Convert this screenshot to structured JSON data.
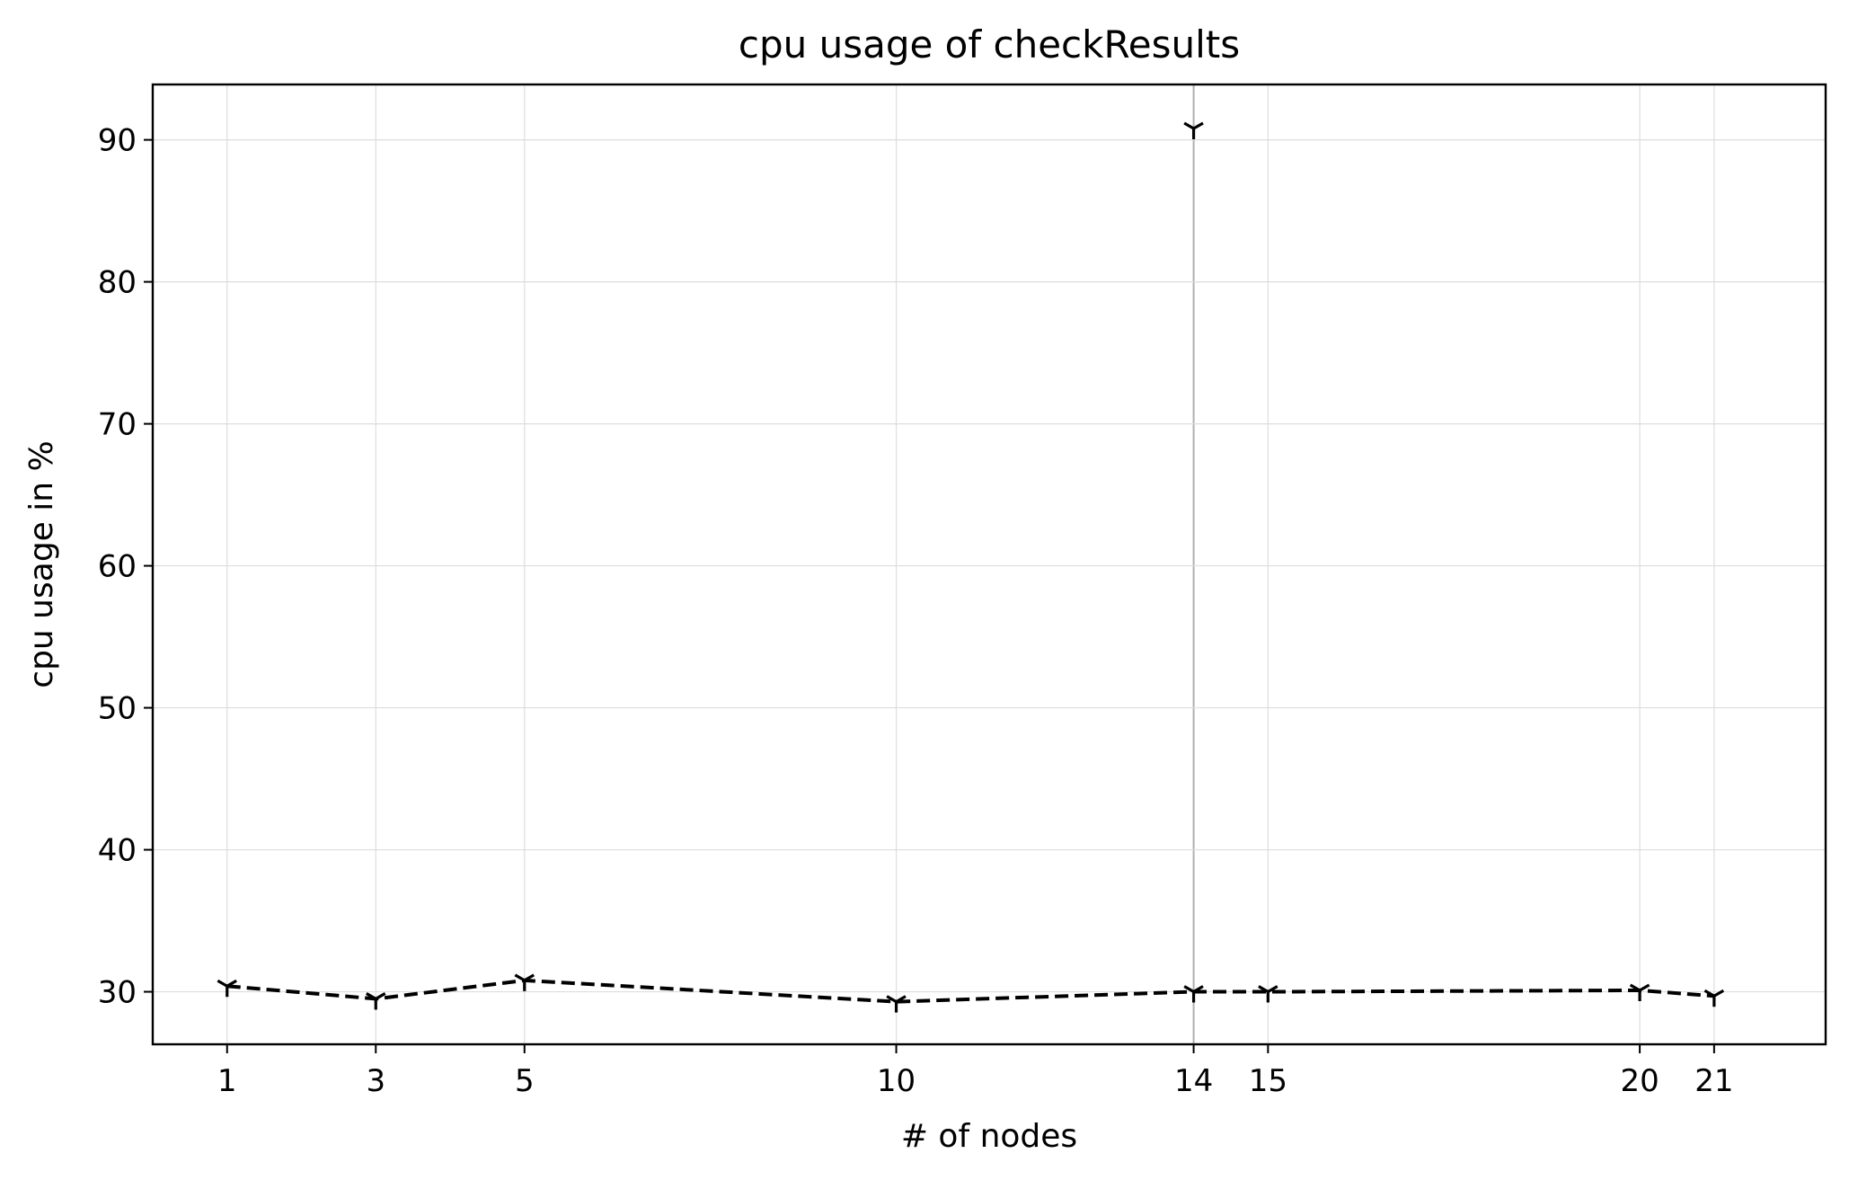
{
  "chart_data": {
    "type": "line",
    "title": "cpu usage of checkResults",
    "xlabel": "# of nodes",
    "ylabel": "cpu usage in %",
    "x": [
      1,
      3,
      5,
      10,
      14,
      15,
      20,
      21
    ],
    "xticks": [
      "1",
      "3",
      "5",
      "10",
      "14",
      "15",
      "20",
      "21"
    ],
    "yticks": [
      "30",
      "40",
      "50",
      "60",
      "70",
      "80",
      "90"
    ],
    "xlim": [
      0,
      22.5
    ],
    "ylim": [
      26.3,
      93.9
    ],
    "grid": true,
    "legend": "none",
    "series": [
      {
        "line_style": "dashed",
        "marker": "tri_down",
        "color": "#000000",
        "values": [
          30.4,
          29.5,
          30.8,
          29.3,
          30.0,
          30.0,
          30.1,
          29.7
        ]
      }
    ],
    "outliers": [
      {
        "x": 14,
        "y": 90.8,
        "marker": "tri_down",
        "color": "#000000"
      }
    ],
    "highlighted_x_gridline": 14
  }
}
